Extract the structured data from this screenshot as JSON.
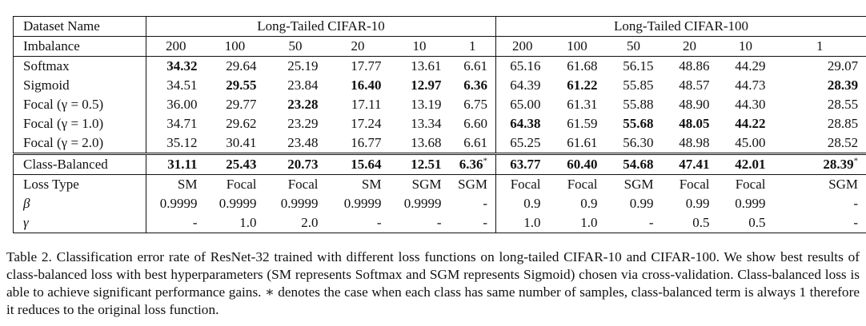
{
  "header": {
    "dataset_label": "Dataset Name",
    "cifar10_label": "Long-Tailed CIFAR-10",
    "cifar100_label": "Long-Tailed CIFAR-100",
    "imbalance_label": "Imbalance",
    "imbalances": [
      "200",
      "100",
      "50",
      "20",
      "10",
      "1",
      "200",
      "100",
      "50",
      "20",
      "10",
      "1"
    ]
  },
  "rows": [
    {
      "name": "Softmax",
      "values": [
        "34.32",
        "29.64",
        "25.19",
        "17.77",
        "13.61",
        "6.61",
        "65.16",
        "61.68",
        "56.15",
        "48.86",
        "44.29",
        "29.07"
      ],
      "bold": [
        0
      ]
    },
    {
      "name": "Sigmoid",
      "values": [
        "34.51",
        "29.55",
        "23.84",
        "16.40",
        "12.97",
        "6.36",
        "64.39",
        "61.22",
        "55.85",
        "48.57",
        "44.73",
        "28.39"
      ],
      "bold": [
        1,
        3,
        4,
        5,
        7,
        11
      ]
    },
    {
      "name": "Focal (γ = 0.5)",
      "values": [
        "36.00",
        "29.77",
        "23.28",
        "17.11",
        "13.19",
        "6.75",
        "65.00",
        "61.31",
        "55.88",
        "48.90",
        "44.30",
        "28.55"
      ],
      "bold": [
        2
      ]
    },
    {
      "name": "Focal (γ = 1.0)",
      "values": [
        "34.71",
        "29.62",
        "23.29",
        "17.24",
        "13.34",
        "6.60",
        "64.38",
        "61.59",
        "55.68",
        "48.05",
        "44.22",
        "28.85"
      ],
      "bold": [
        6,
        8,
        9,
        10
      ]
    },
    {
      "name": "Focal (γ = 2.0)",
      "values": [
        "35.12",
        "30.41",
        "23.48",
        "16.77",
        "13.68",
        "6.61",
        "65.25",
        "61.61",
        "56.30",
        "48.98",
        "45.00",
        "28.52"
      ],
      "bold": []
    }
  ],
  "class_balanced": {
    "name": "Class-Balanced",
    "values": [
      "31.11",
      "25.43",
      "20.73",
      "15.64",
      "12.51",
      "6.36",
      "63.77",
      "60.40",
      "54.68",
      "47.41",
      "42.01",
      "28.39"
    ],
    "star": "*"
  },
  "loss_type": {
    "name": "Loss Type",
    "values": [
      "SM",
      "Focal",
      "Focal",
      "SM",
      "SGM",
      "SGM",
      "Focal",
      "Focal",
      "SGM",
      "Focal",
      "Focal",
      "SGM"
    ]
  },
  "beta": {
    "name": "β",
    "values": [
      "0.9999",
      "0.9999",
      "0.9999",
      "0.9999",
      "0.9999",
      "-",
      "0.9",
      "0.9",
      "0.99",
      "0.99",
      "0.999",
      "-"
    ]
  },
  "gamma": {
    "name": "γ",
    "values": [
      "-",
      "1.0",
      "2.0",
      "-",
      "-",
      "-",
      "1.0",
      "1.0",
      "-",
      "0.5",
      "0.5",
      "-"
    ]
  },
  "caption": "Table 2. Classification error rate of ResNet-32 trained with different loss functions on long-tailed CIFAR-10 and CIFAR-100. We show best results of class-balanced loss with best hyperparameters (SM represents Softmax and SGM represents Sigmoid) chosen via cross-validation. Class-balanced loss is able to achieve significant performance gains. ∗ denotes the case when each class has same number of samples, class-balanced term is always 1 therefore it reduces to the original loss function."
}
